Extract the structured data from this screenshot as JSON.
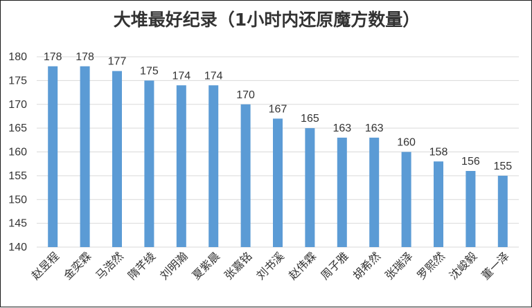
{
  "chart_data": {
    "type": "bar",
    "title": "大堆最好纪录（1小时内还原魔方数量）",
    "xlabel": "",
    "ylabel": "",
    "ylim": [
      140,
      180
    ],
    "ytick_step": 5,
    "grid": true,
    "legend": false,
    "bar_color": "#5b9bd5",
    "grid_color": "#d9d9d9",
    "categories": [
      "赵昱程",
      "金奕霖",
      "马浩然",
      "隋芊绫",
      "刘明瀚",
      "夏紫晨",
      "张嘉铭",
      "刘书溪",
      "赵伟霖",
      "周子雅",
      "胡希然",
      "张瑞泽",
      "罗熙然",
      "沈峻毅",
      "董一泽"
    ],
    "values": [
      178,
      178,
      177,
      175,
      174,
      174,
      170,
      167,
      165,
      163,
      163,
      160,
      158,
      156,
      155
    ]
  }
}
